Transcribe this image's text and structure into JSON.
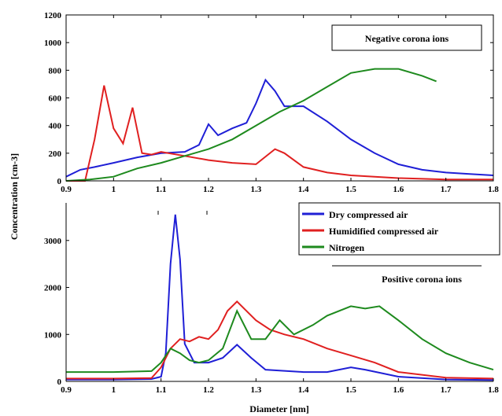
{
  "figure": {
    "ylabel": "Concentration [cm-3]",
    "xlabel": "Diameter [nm]"
  },
  "legend": {
    "entries": [
      {
        "label": "Dry compressed air",
        "color": "#1f1fd6"
      },
      {
        "label": "Humidified compressed air",
        "color": "#e02020"
      },
      {
        "label": "Nitrogen",
        "color": "#1e8a1e"
      }
    ]
  },
  "chart_data": [
    {
      "type": "line",
      "annotation": "Negative corona ions",
      "xlim": [
        0.9,
        1.8
      ],
      "ylim": [
        0,
        1200
      ],
      "x_ticks": [
        "0.9",
        "1",
        "1.1",
        "1.2",
        "1.3",
        "1.4",
        "1.5",
        "1.6",
        "1.7",
        "1.8"
      ],
      "y_ticks": [
        "0",
        "200",
        "400",
        "600",
        "800",
        "1000",
        "1200"
      ],
      "series": [
        {
          "name": "Dry compressed air",
          "color": "#1f1fd6",
          "points": [
            [
              0.9,
              30
            ],
            [
              0.93,
              80
            ],
            [
              0.96,
              100
            ],
            [
              1.0,
              130
            ],
            [
              1.05,
              170
            ],
            [
              1.1,
              200
            ],
            [
              1.15,
              210
            ],
            [
              1.18,
              260
            ],
            [
              1.2,
              410
            ],
            [
              1.22,
              330
            ],
            [
              1.25,
              380
            ],
            [
              1.28,
              420
            ],
            [
              1.3,
              560
            ],
            [
              1.32,
              730
            ],
            [
              1.34,
              650
            ],
            [
              1.36,
              540
            ],
            [
              1.4,
              540
            ],
            [
              1.45,
              430
            ],
            [
              1.5,
              300
            ],
            [
              1.55,
              200
            ],
            [
              1.6,
              120
            ],
            [
              1.65,
              80
            ],
            [
              1.7,
              60
            ],
            [
              1.75,
              50
            ],
            [
              1.8,
              40
            ]
          ]
        },
        {
          "name": "Humidified compressed air",
          "color": "#e02020",
          "points": [
            [
              0.9,
              0
            ],
            [
              0.94,
              0
            ],
            [
              0.96,
              300
            ],
            [
              0.98,
              690
            ],
            [
              1.0,
              380
            ],
            [
              1.02,
              270
            ],
            [
              1.04,
              530
            ],
            [
              1.06,
              200
            ],
            [
              1.08,
              190
            ],
            [
              1.1,
              210
            ],
            [
              1.15,
              180
            ],
            [
              1.2,
              150
            ],
            [
              1.25,
              130
            ],
            [
              1.3,
              120
            ],
            [
              1.34,
              230
            ],
            [
              1.36,
              200
            ],
            [
              1.4,
              100
            ],
            [
              1.45,
              60
            ],
            [
              1.5,
              40
            ],
            [
              1.6,
              20
            ],
            [
              1.7,
              10
            ],
            [
              1.8,
              10
            ]
          ]
        },
        {
          "name": "Nitrogen",
          "color": "#1e8a1e",
          "points": [
            [
              0.9,
              0
            ],
            [
              0.95,
              10
            ],
            [
              1.0,
              30
            ],
            [
              1.05,
              90
            ],
            [
              1.1,
              130
            ],
            [
              1.15,
              180
            ],
            [
              1.2,
              230
            ],
            [
              1.25,
              300
            ],
            [
              1.3,
              400
            ],
            [
              1.35,
              500
            ],
            [
              1.4,
              580
            ],
            [
              1.45,
              680
            ],
            [
              1.5,
              780
            ],
            [
              1.55,
              810
            ],
            [
              1.6,
              810
            ],
            [
              1.65,
              760
            ],
            [
              1.68,
              720
            ]
          ]
        }
      ]
    },
    {
      "type": "line",
      "annotation": "Positive corona ions",
      "xlim": [
        0.9,
        1.8
      ],
      "ylim": [
        0,
        3800
      ],
      "x_ticks": [
        "0.9",
        "1",
        "1.1",
        "1.2",
        "1.3",
        "1.4",
        "1.5",
        "1.6",
        "1.7",
        "1.8"
      ],
      "y_ticks": [
        "0",
        "1000",
        "2000",
        "3000"
      ],
      "series": [
        {
          "name": "Dry compressed air",
          "color": "#1f1fd6",
          "points": [
            [
              0.9,
              40
            ],
            [
              1.0,
              40
            ],
            [
              1.08,
              50
            ],
            [
              1.1,
              100
            ],
            [
              1.11,
              600
            ],
            [
              1.12,
              2500
            ],
            [
              1.13,
              3550
            ],
            [
              1.14,
              2600
            ],
            [
              1.15,
              800
            ],
            [
              1.17,
              400
            ],
            [
              1.2,
              400
            ],
            [
              1.23,
              500
            ],
            [
              1.26,
              780
            ],
            [
              1.29,
              500
            ],
            [
              1.32,
              250
            ],
            [
              1.4,
              200
            ],
            [
              1.45,
              200
            ],
            [
              1.5,
              300
            ],
            [
              1.53,
              250
            ],
            [
              1.6,
              100
            ],
            [
              1.7,
              40
            ],
            [
              1.8,
              30
            ]
          ]
        },
        {
          "name": "Humidified compressed air",
          "color": "#e02020",
          "points": [
            [
              0.9,
              60
            ],
            [
              1.0,
              60
            ],
            [
              1.08,
              70
            ],
            [
              1.1,
              300
            ],
            [
              1.12,
              700
            ],
            [
              1.14,
              900
            ],
            [
              1.16,
              850
            ],
            [
              1.18,
              950
            ],
            [
              1.2,
              900
            ],
            [
              1.22,
              1100
            ],
            [
              1.24,
              1500
            ],
            [
              1.26,
              1700
            ],
            [
              1.28,
              1500
            ],
            [
              1.3,
              1300
            ],
            [
              1.33,
              1100
            ],
            [
              1.36,
              1000
            ],
            [
              1.4,
              900
            ],
            [
              1.45,
              700
            ],
            [
              1.5,
              550
            ],
            [
              1.55,
              400
            ],
            [
              1.6,
              200
            ],
            [
              1.7,
              80
            ],
            [
              1.8,
              60
            ]
          ]
        },
        {
          "name": "Nitrogen",
          "color": "#1e8a1e",
          "points": [
            [
              0.9,
              200
            ],
            [
              1.0,
              200
            ],
            [
              1.08,
              220
            ],
            [
              1.1,
              400
            ],
            [
              1.12,
              700
            ],
            [
              1.14,
              600
            ],
            [
              1.16,
              450
            ],
            [
              1.18,
              400
            ],
            [
              1.2,
              450
            ],
            [
              1.23,
              700
            ],
            [
              1.26,
              1500
            ],
            [
              1.29,
              900
            ],
            [
              1.32,
              900
            ],
            [
              1.35,
              1300
            ],
            [
              1.38,
              1000
            ],
            [
              1.42,
              1200
            ],
            [
              1.45,
              1400
            ],
            [
              1.5,
              1600
            ],
            [
              1.53,
              1550
            ],
            [
              1.56,
              1600
            ],
            [
              1.6,
              1300
            ],
            [
              1.65,
              900
            ],
            [
              1.7,
              600
            ],
            [
              1.75,
              400
            ],
            [
              1.8,
              250
            ]
          ]
        }
      ]
    }
  ]
}
